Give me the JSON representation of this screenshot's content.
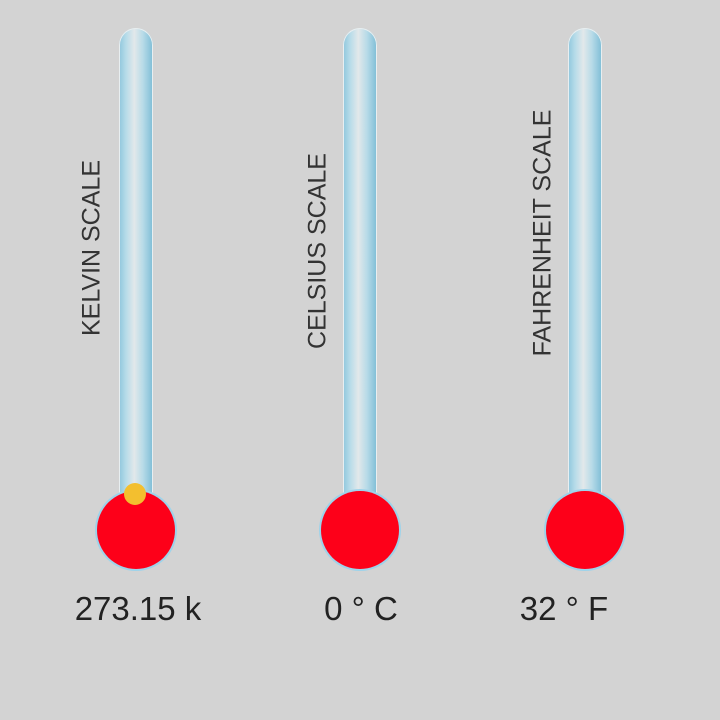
{
  "thermometers": [
    {
      "label": "KELVIN SCALE",
      "value": "273.15 k"
    },
    {
      "label": "CELSIUS SCALE",
      "value": "0 ° C"
    },
    {
      "label": "FAHRENHEIT SCALE",
      "value": "32 ° F"
    }
  ],
  "colors": {
    "bulb": "#fd0019",
    "mercury": "#f3bf2f",
    "tube": "#8fc6dc",
    "background": "#d3d3d3"
  }
}
